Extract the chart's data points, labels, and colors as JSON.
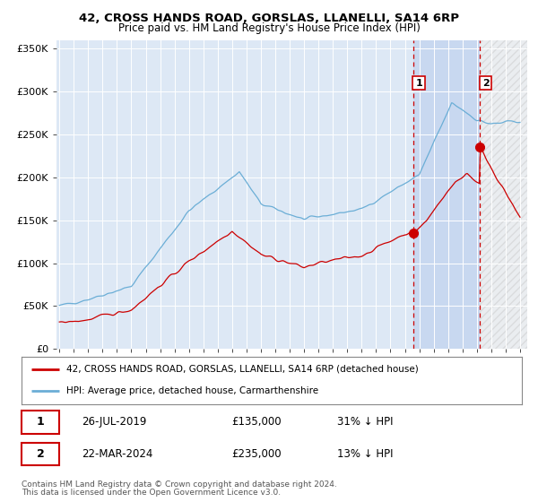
{
  "title": "42, CROSS HANDS ROAD, GORSLAS, LLANELLI, SA14 6RP",
  "subtitle": "Price paid vs. HM Land Registry's House Price Index (HPI)",
  "ylabel_ticks": [
    "£0",
    "£50K",
    "£100K",
    "£150K",
    "£200K",
    "£250K",
    "£300K",
    "£350K"
  ],
  "ytick_values": [
    0,
    50000,
    100000,
    150000,
    200000,
    250000,
    300000,
    350000
  ],
  "ylim": [
    0,
    360000
  ],
  "xlim_start": 1994.8,
  "xlim_end": 2027.5,
  "hpi_color": "#6baed6",
  "price_color": "#cc0000",
  "background_color": "#dde8f5",
  "shaded_region_color": "#c8d8f0",
  "point1_date": "26-JUL-2019",
  "point1_price": 135000,
  "point1_hpi_pct": "31%",
  "point1_x": 2019.57,
  "point1_y": 135000,
  "point2_date": "22-MAR-2024",
  "point2_price": 235000,
  "point2_hpi_pct": "13%",
  "point2_x": 2024.22,
  "point2_y": 235000,
  "legend_line1": "42, CROSS HANDS ROAD, GORSLAS, LLANELLI, SA14 6RP (detached house)",
  "legend_line2": "HPI: Average price, detached house, Carmarthenshire",
  "footer1": "Contains HM Land Registry data © Crown copyright and database right 2024.",
  "footer2": "This data is licensed under the Open Government Licence v3.0.",
  "xticks": [
    1995,
    1996,
    1997,
    1998,
    1999,
    2000,
    2001,
    2002,
    2003,
    2004,
    2005,
    2006,
    2007,
    2008,
    2009,
    2010,
    2011,
    2012,
    2013,
    2014,
    2015,
    2016,
    2017,
    2018,
    2019,
    2020,
    2021,
    2022,
    2023,
    2024,
    2025,
    2026,
    2027
  ]
}
